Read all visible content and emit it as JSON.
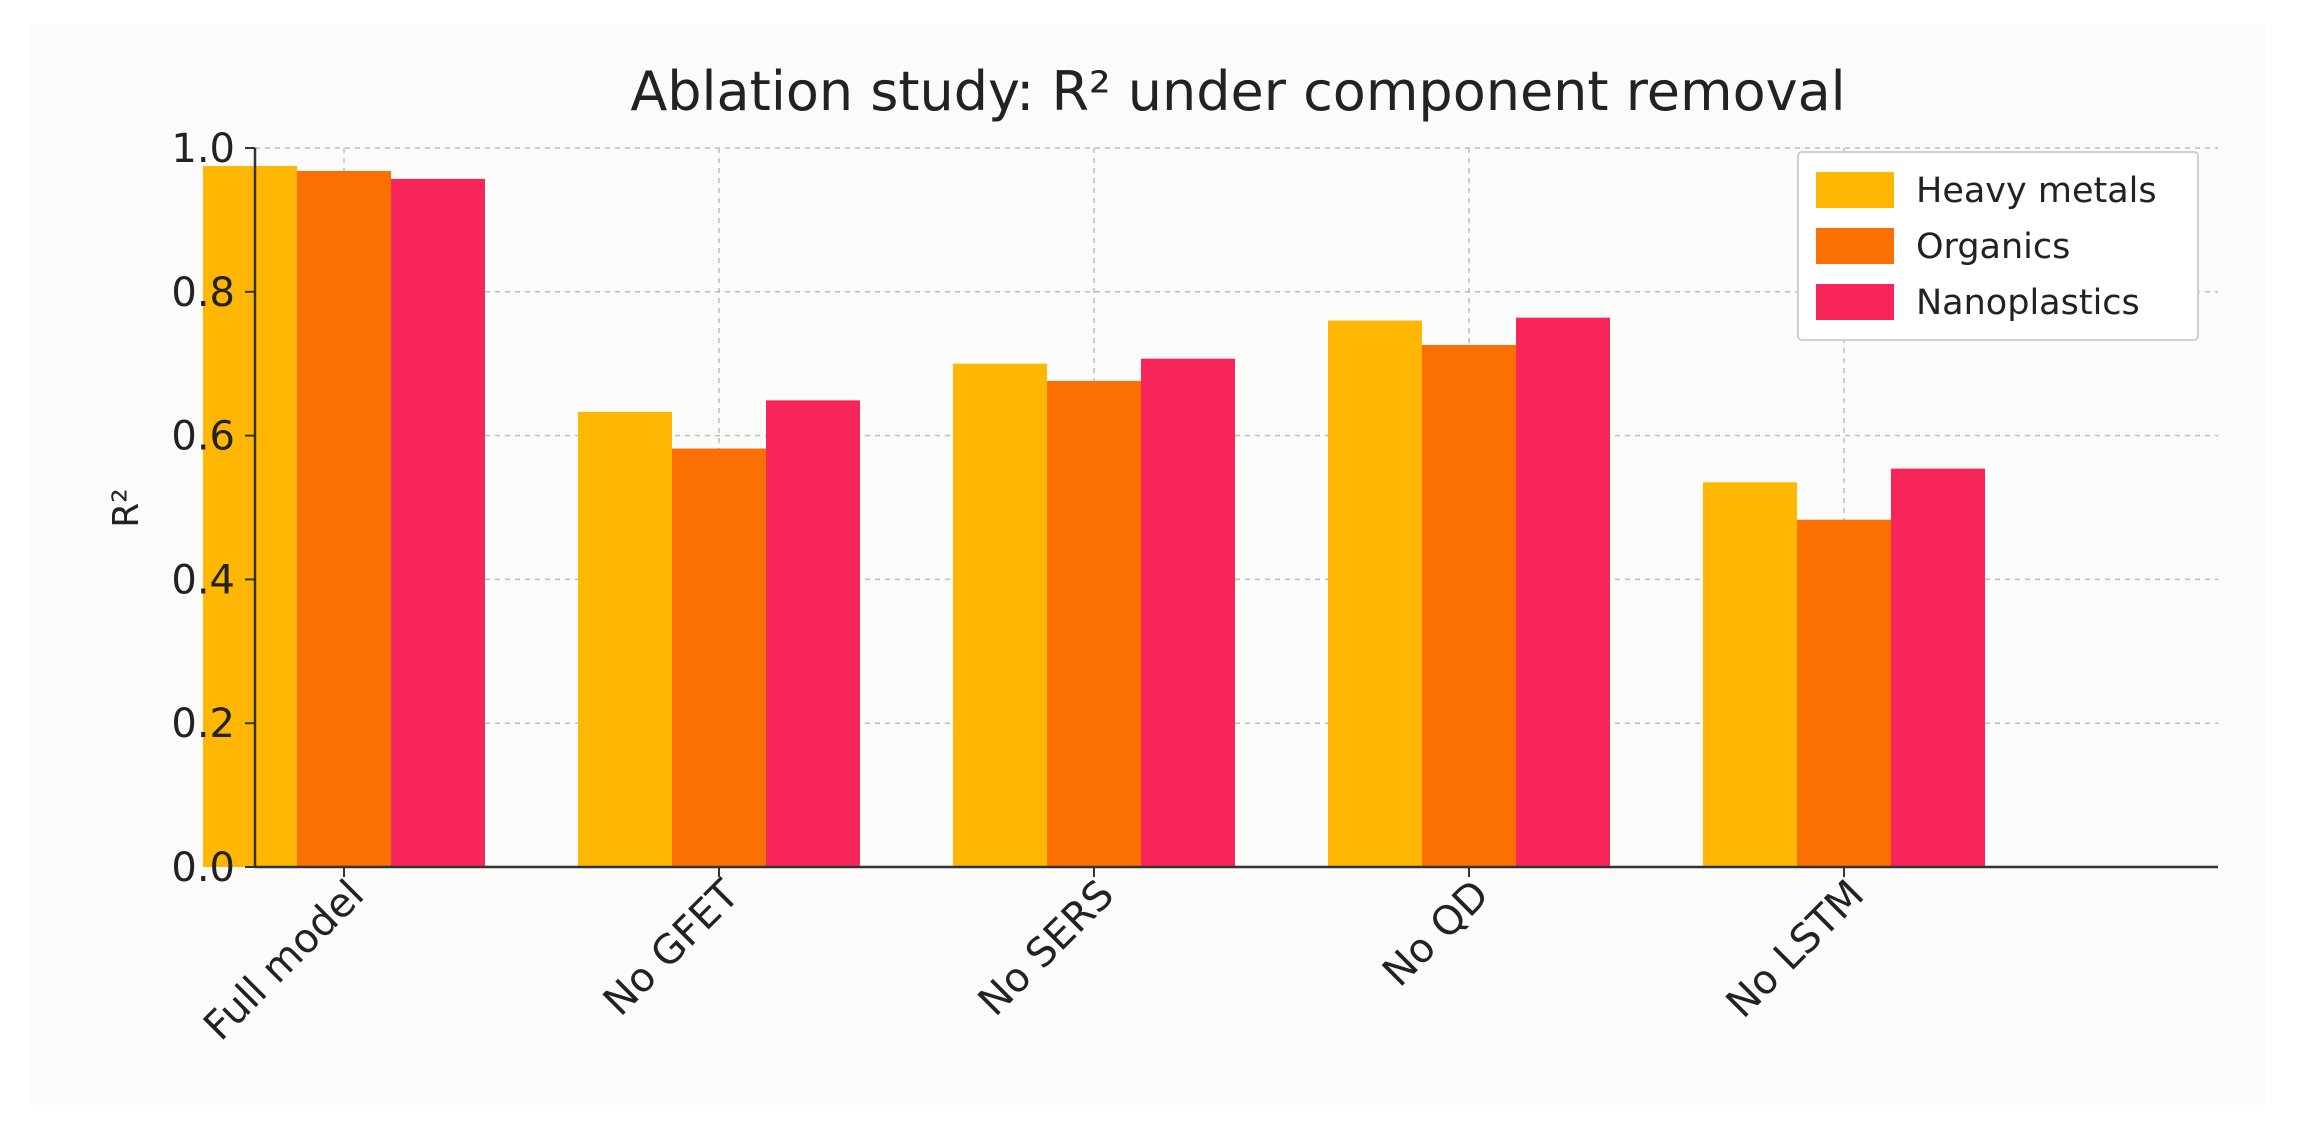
{
  "chart_data": {
    "type": "bar",
    "title": "Ablation study: R² under component removal",
    "xlabel": "",
    "ylabel": "R²",
    "ylim": [
      0,
      1.0
    ],
    "yticks": [
      "0.0",
      "0.2",
      "0.4",
      "0.6",
      "0.8",
      "1.0"
    ],
    "categories": [
      "Full model",
      "No GFET",
      "No SERS",
      "No QD",
      "No LSTM"
    ],
    "series": [
      {
        "name": "Heavy metals",
        "color": "#FFB703",
        "values": [
          0.975,
          0.633,
          0.7,
          0.76,
          0.535
        ]
      },
      {
        "name": "Organics",
        "color": "#FB6F03",
        "values": [
          0.968,
          0.582,
          0.676,
          0.726,
          0.483
        ]
      },
      {
        "name": "Nanoplastics",
        "color": "#F72559",
        "values": [
          0.957,
          0.649,
          0.707,
          0.764,
          0.554
        ]
      }
    ],
    "grid": true,
    "legend_position": "top-right"
  }
}
